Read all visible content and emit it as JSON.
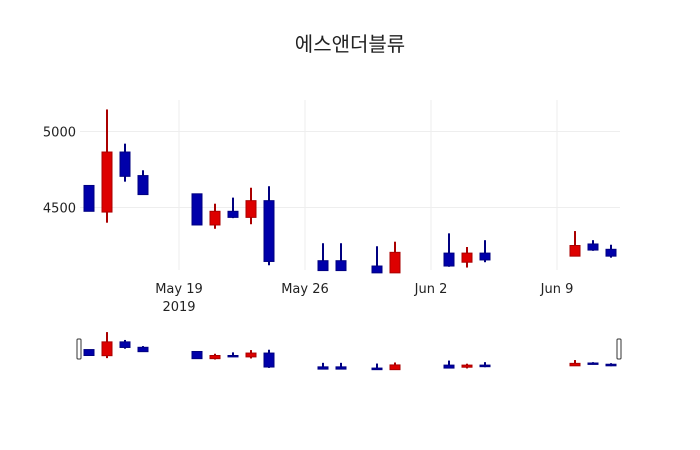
{
  "chart_data": {
    "type": "candlestick",
    "title": "에스앤더블류",
    "xlabel": "",
    "ylabel": "",
    "ylim": [
      4085,
      5205
    ],
    "y_ticks": [
      4500,
      5000
    ],
    "x_ticks": [
      {
        "date": "2019-05-19",
        "label": "May 19",
        "sublabel": "2019"
      },
      {
        "date": "2019-05-26",
        "label": "May 26",
        "sublabel": ""
      },
      {
        "date": "2019-06-02",
        "label": "Jun 2",
        "sublabel": ""
      },
      {
        "date": "2019-06-09",
        "label": "Jun 9",
        "sublabel": ""
      }
    ],
    "grid": true,
    "rangeslider": true,
    "increasing_color": "#dd0000",
    "decreasing_color": "#0000aa",
    "x": [
      "2019-05-14",
      "2019-05-15",
      "2019-05-16",
      "2019-05-17",
      "2019-05-20",
      "2019-05-21",
      "2019-05-22",
      "2019-05-23",
      "2019-05-24",
      "2019-05-27",
      "2019-05-28",
      "2019-05-30",
      "2019-05-31",
      "2019-06-03",
      "2019-06-04",
      "2019-06-05",
      "2019-06-10",
      "2019-06-11",
      "2019-06-12"
    ],
    "open": [
      4645,
      4470,
      4865,
      4710,
      4590,
      4385,
      4475,
      4435,
      4545,
      4150,
      4150,
      4115,
      4070,
      4200,
      4140,
      4200,
      4180,
      4260,
      4225
    ],
    "high": [
      4645,
      5145,
      4920,
      4745,
      4590,
      4525,
      4565,
      4630,
      4640,
      4265,
      4265,
      4245,
      4275,
      4330,
      4240,
      4285,
      4345,
      4285,
      4255
    ],
    "low": [
      4475,
      4400,
      4670,
      4585,
      4385,
      4360,
      4430,
      4390,
      4120,
      4085,
      4085,
      4070,
      4070,
      4110,
      4105,
      4140,
      4190,
      4215,
      4170
    ],
    "close": [
      4475,
      4865,
      4705,
      4585,
      4385,
      4475,
      4435,
      4545,
      4145,
      4085,
      4085,
      4070,
      4205,
      4115,
      4200,
      4155,
      4250,
      4220,
      4180
    ]
  }
}
